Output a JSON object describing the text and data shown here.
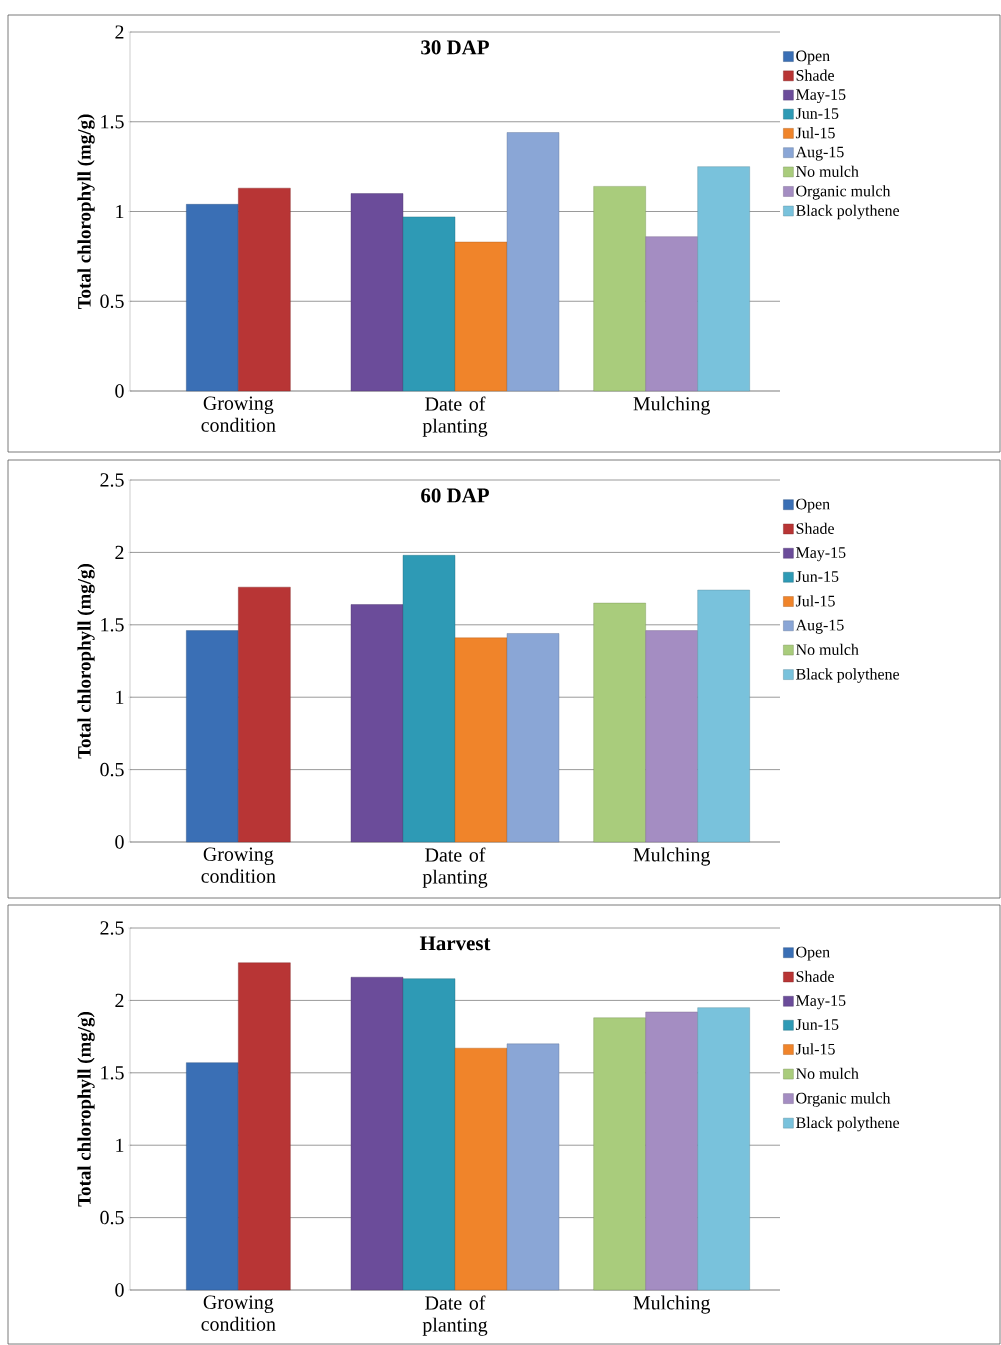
{
  "chart_data": [
    {
      "type": "bar",
      "title": "30 DAP",
      "ylabel": "Total chlorophyll (mg/g)",
      "categories": [
        "Growing condition",
        "Date of planting",
        "Mulching"
      ],
      "ylim": [
        0,
        2
      ],
      "yticks": [
        0,
        0.5,
        1,
        1.5,
        2
      ],
      "grid": "y",
      "legend": "right",
      "series": [
        {
          "name": "Open",
          "color": "#3a6fb5",
          "values": [
            1.04,
            null,
            null
          ]
        },
        {
          "name": "Shade",
          "color": "#b83535",
          "values": [
            1.13,
            null,
            null
          ]
        },
        {
          "name": "May-15",
          "color": "#6b4c9a",
          "values": [
            null,
            1.1,
            null
          ]
        },
        {
          "name": "Jun-15",
          "color": "#2e9ab5",
          "values": [
            null,
            0.97,
            null
          ]
        },
        {
          "name": "Jul-15",
          "color": "#f0842a",
          "values": [
            null,
            0.83,
            null
          ]
        },
        {
          "name": "Aug-15",
          "color": "#8aa6d6",
          "values": [
            null,
            1.44,
            null
          ]
        },
        {
          "name": "No mulch",
          "color": "#a9cc7c",
          "values": [
            null,
            null,
            1.14
          ]
        },
        {
          "name": "Organic mulch",
          "color": "#a48dc2",
          "values": [
            null,
            null,
            0.86
          ]
        },
        {
          "name": "Black polythene",
          "color": "#79c2dc",
          "values": [
            null,
            null,
            1.25
          ]
        }
      ]
    },
    {
      "type": "bar",
      "title": "60 DAP",
      "ylabel": "Total chlorophyll (mg/g)",
      "categories": [
        "Growing condition",
        "Date of planting",
        "Mulching"
      ],
      "ylim": [
        0,
        2.5
      ],
      "yticks": [
        0,
        0.5,
        1,
        1.5,
        2,
        2.5
      ],
      "grid": "y",
      "legend": "right",
      "series": [
        {
          "name": "Open",
          "color": "#3a6fb5",
          "values": [
            1.46,
            null,
            null
          ]
        },
        {
          "name": "Shade",
          "color": "#b83535",
          "values": [
            1.76,
            null,
            null
          ]
        },
        {
          "name": "May-15",
          "color": "#6b4c9a",
          "values": [
            null,
            1.64,
            null
          ]
        },
        {
          "name": "Jun-15",
          "color": "#2e9ab5",
          "values": [
            null,
            1.98,
            null
          ]
        },
        {
          "name": "Jul-15",
          "color": "#f0842a",
          "values": [
            null,
            1.41,
            null
          ]
        },
        {
          "name": "Aug-15",
          "color": "#8aa6d6",
          "values": [
            null,
            1.44,
            null
          ]
        },
        {
          "name": "No mulch",
          "color": "#a9cc7c",
          "values": [
            null,
            null,
            1.65
          ]
        },
        {
          "color": "#a48dc2",
          "values": [
            null,
            null,
            1.46
          ]
        },
        {
          "name": "Black polythene",
          "color": "#79c2dc",
          "values": [
            null,
            null,
            1.74
          ]
        }
      ]
    },
    {
      "type": "bar",
      "title": "Harvest",
      "ylabel": "Total chlorophyll (mg/g)",
      "categories": [
        "Growing condition",
        "Date of planting",
        "Mulching"
      ],
      "ylim": [
        0,
        2.5
      ],
      "yticks": [
        0,
        0.5,
        1,
        1.5,
        2,
        2.5
      ],
      "grid": "y",
      "legend": "right",
      "series": [
        {
          "name": "Open",
          "color": "#3a6fb5",
          "values": [
            1.57,
            null,
            null
          ]
        },
        {
          "name": "Shade",
          "color": "#b83535",
          "values": [
            2.26,
            null,
            null
          ]
        },
        {
          "name": "May-15",
          "color": "#6b4c9a",
          "values": [
            null,
            2.16,
            null
          ]
        },
        {
          "name": "Jun-15",
          "color": "#2e9ab5",
          "values": [
            null,
            2.15,
            null
          ]
        },
        {
          "name": "Jul-15",
          "color": "#f0842a",
          "values": [
            null,
            1.67,
            null
          ]
        },
        {
          "color": "#8aa6d6",
          "values": [
            null,
            1.7,
            null
          ]
        },
        {
          "name": "No mulch",
          "color": "#a9cc7c",
          "values": [
            null,
            null,
            1.88
          ]
        },
        {
          "name": "Organic mulch",
          "color": "#a48dc2",
          "values": [
            null,
            null,
            1.92
          ]
        },
        {
          "name": "Black polythene",
          "color": "#79c2dc",
          "values": [
            null,
            null,
            1.95
          ]
        }
      ]
    }
  ]
}
